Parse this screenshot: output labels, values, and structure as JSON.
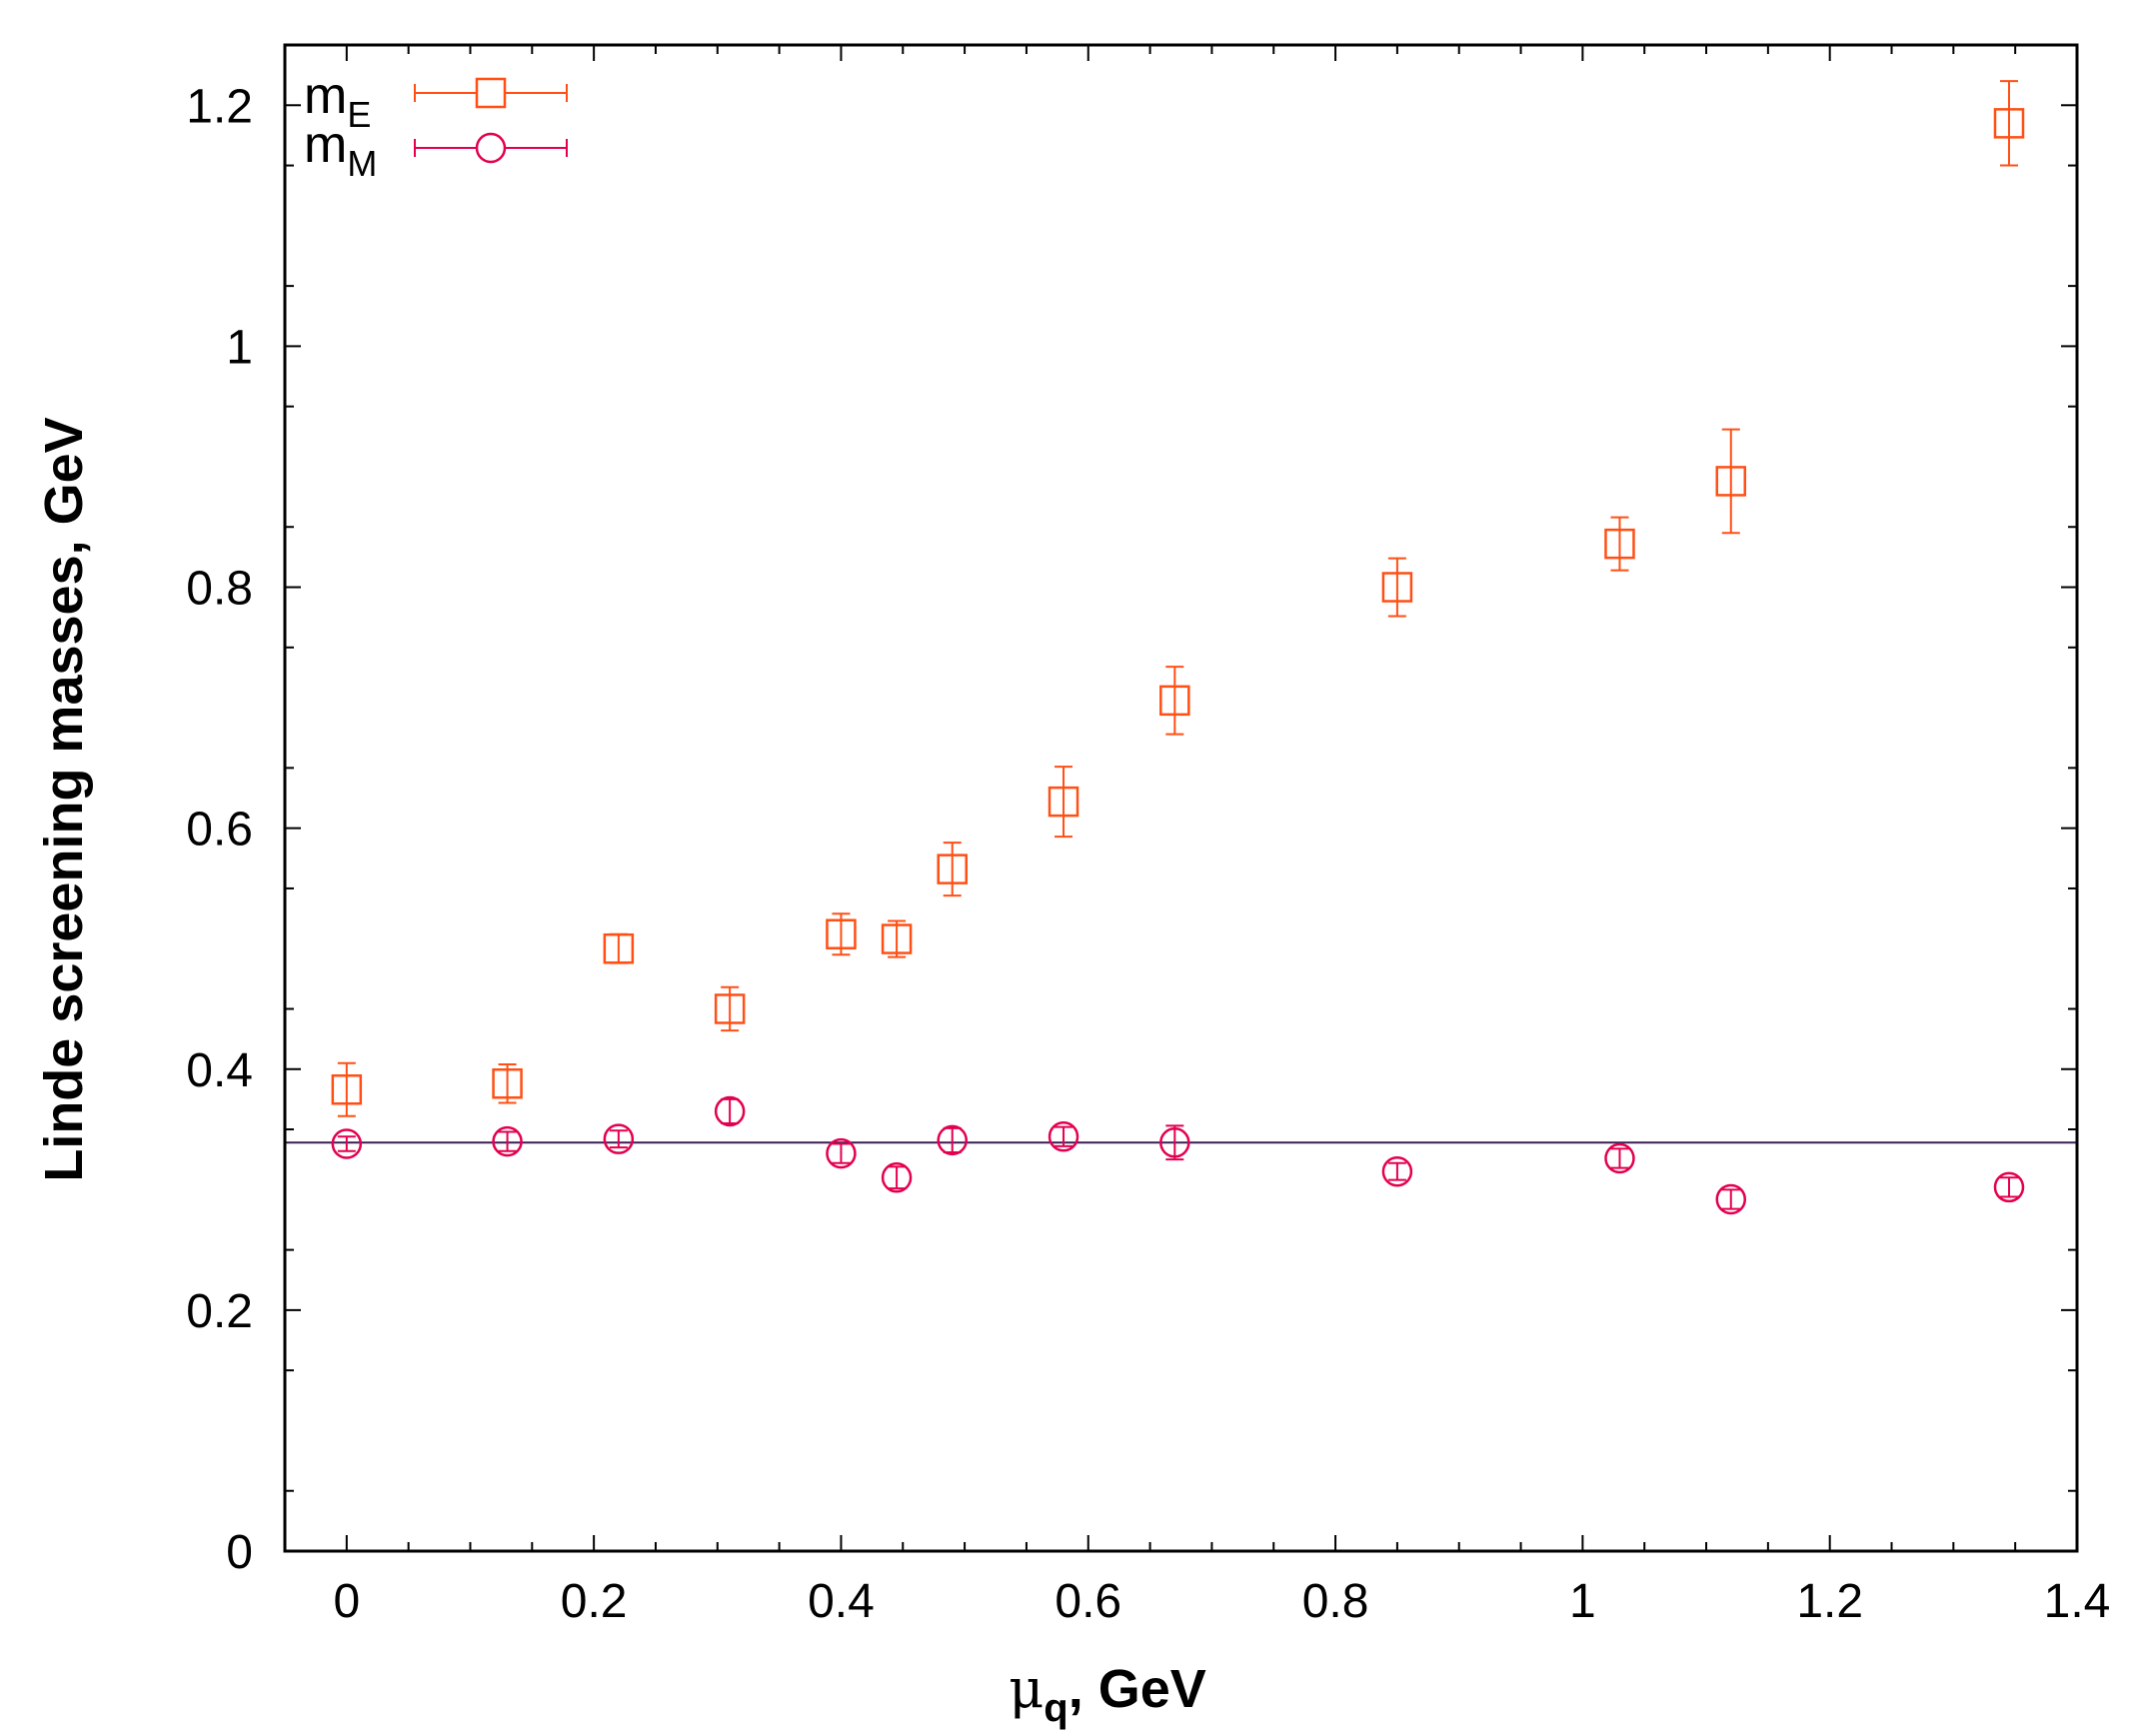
{
  "chart_data": {
    "type": "scatter",
    "title": "",
    "xlabel_symbol": "μ",
    "xlabel_sub": "q",
    "xlabel_rest": ", GeV",
    "ylabel": "Linde screening masses, GeV",
    "xlim": [
      -0.05,
      1.4
    ],
    "ylim": [
      0,
      1.25
    ],
    "x_ticks": [
      0,
      0.2,
      0.4,
      0.6,
      0.8,
      1,
      1.2,
      1.4
    ],
    "x_tick_labels": [
      "0",
      "0.2",
      "0.4",
      "0.6",
      "0.8",
      "1",
      "1.2",
      "1.4"
    ],
    "y_ticks": [
      0,
      0.2,
      0.4,
      0.6,
      0.8,
      1,
      1.2
    ],
    "y_tick_labels": [
      "0",
      "0.2",
      "0.4",
      "0.6",
      "0.8",
      "1",
      "1.2"
    ],
    "grid": false,
    "legend_position": "top-left",
    "series": [
      {
        "name": "m_E",
        "label_main": "m",
        "label_sub": "E",
        "marker": "square",
        "color": "#ff4f14",
        "x": [
          0.0,
          0.13,
          0.22,
          0.31,
          0.4,
          0.445,
          0.49,
          0.58,
          0.67,
          0.85,
          1.03,
          1.12,
          1.345
        ],
        "y": [
          0.383,
          0.388,
          0.5,
          0.45,
          0.512,
          0.508,
          0.566,
          0.622,
          0.706,
          0.8,
          0.836,
          0.888,
          1.185
        ],
        "yerr": [
          0.022,
          0.016,
          0.012,
          0.018,
          0.017,
          0.015,
          0.022,
          0.029,
          0.028,
          0.024,
          0.022,
          0.043,
          0.035
        ]
      },
      {
        "name": "m_M",
        "label_main": "m",
        "label_sub": "M",
        "marker": "circle",
        "color": "#e3004f",
        "x": [
          0.0,
          0.13,
          0.22,
          0.31,
          0.4,
          0.445,
          0.49,
          0.58,
          0.67,
          0.85,
          1.03,
          1.12,
          1.345
        ],
        "y": [
          0.338,
          0.34,
          0.342,
          0.365,
          0.33,
          0.31,
          0.341,
          0.344,
          0.339,
          0.315,
          0.326,
          0.292,
          0.302
        ],
        "yerr": [
          0.006,
          0.008,
          0.007,
          0.01,
          0.008,
          0.009,
          0.01,
          0.008,
          0.014,
          0.007,
          0.008,
          0.008,
          0.008
        ]
      }
    ],
    "reference_line": {
      "y": 0.339,
      "color": "#3c1d52"
    }
  }
}
